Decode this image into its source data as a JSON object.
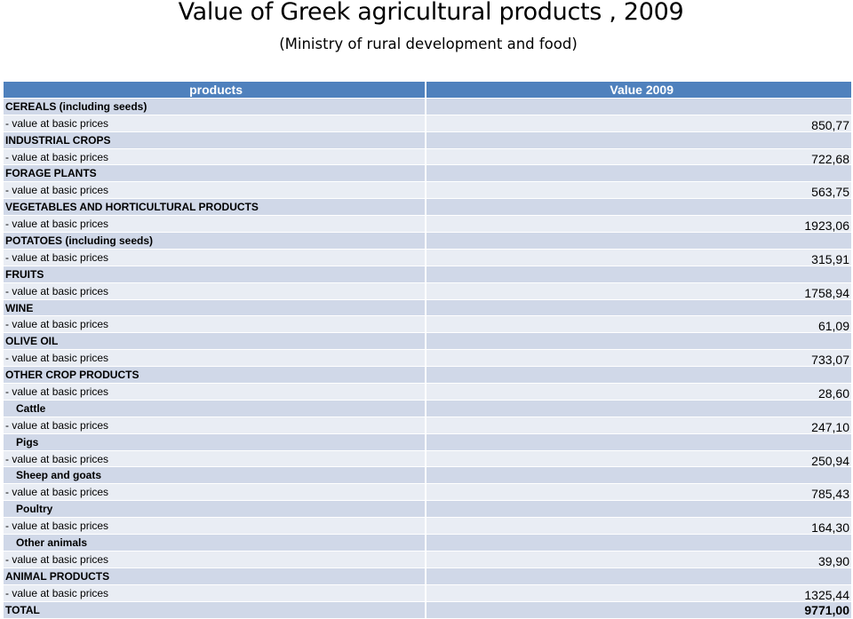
{
  "title": "Value of Greek agricultural products , 2009",
  "subtitle": "(Ministry of rural development and food)",
  "table": {
    "headers": [
      "products",
      "Value 2009"
    ],
    "rows": [
      {
        "label": "CEREALS (including seeds)",
        "value": "",
        "kind": "cat"
      },
      {
        "label": "- value at basic prices",
        "value": "850,77",
        "kind": "val"
      },
      {
        "label": "INDUSTRIAL CROPS",
        "value": "",
        "kind": "cat"
      },
      {
        "label": "- value at basic prices",
        "value": "722,68",
        "kind": "val"
      },
      {
        "label": "FORAGE PLANTS",
        "value": "",
        "kind": "cat"
      },
      {
        "label": "- value at basic prices",
        "value": "563,75",
        "kind": "val"
      },
      {
        "label": "VEGETABLES AND HORTICULTURAL PRODUCTS",
        "value": "",
        "kind": "cat"
      },
      {
        "label": "- value at basic prices",
        "value": "1923,06",
        "kind": "val"
      },
      {
        "label": "POTATOES (including seeds)",
        "value": "",
        "kind": "cat"
      },
      {
        "label": "- value at basic prices",
        "value": "315,91",
        "kind": "val"
      },
      {
        "label": "FRUITS",
        "value": "",
        "kind": "cat"
      },
      {
        "label": "- value at basic prices",
        "value": "1758,94",
        "kind": "val"
      },
      {
        "label": "WINE",
        "value": "",
        "kind": "cat"
      },
      {
        "label": "- value at basic prices",
        "value": "61,09",
        "kind": "val"
      },
      {
        "label": "OLIVE OIL",
        "value": "",
        "kind": "cat"
      },
      {
        "label": "- value at basic prices",
        "value": "733,07",
        "kind": "val"
      },
      {
        "label": "OTHER CROP PRODUCTS",
        "value": "",
        "kind": "cat"
      },
      {
        "label": "- value at basic prices",
        "value": "28,60",
        "kind": "val"
      },
      {
        "label": "Cattle",
        "value": "",
        "kind": "sub"
      },
      {
        "label": "- value at basic prices",
        "value": "247,10",
        "kind": "val"
      },
      {
        "label": "Pigs",
        "value": "",
        "kind": "sub"
      },
      {
        "label": "- value at basic prices",
        "value": "250,94",
        "kind": "val"
      },
      {
        "label": "Sheep and goats",
        "value": "",
        "kind": "sub"
      },
      {
        "label": "- value at basic prices",
        "value": "785,43",
        "kind": "val"
      },
      {
        "label": "Poultry",
        "value": "",
        "kind": "sub"
      },
      {
        "label": "- value at basic prices",
        "value": "164,30",
        "kind": "val"
      },
      {
        "label": "Other animals",
        "value": "",
        "kind": "sub"
      },
      {
        "label": "- value at basic prices",
        "value": "39,90",
        "kind": "val"
      },
      {
        "label": "ANIMAL PRODUCTS",
        "value": "",
        "kind": "cat"
      },
      {
        "label": "- value at basic prices",
        "value": "1325,44",
        "kind": "val"
      },
      {
        "label": "TOTAL",
        "value": "9771,00",
        "kind": "total"
      }
    ]
  },
  "colors": {
    "header_bg": "#4f81bd",
    "row_dark": "#d0d8e8",
    "row_light": "#e9edf4"
  }
}
